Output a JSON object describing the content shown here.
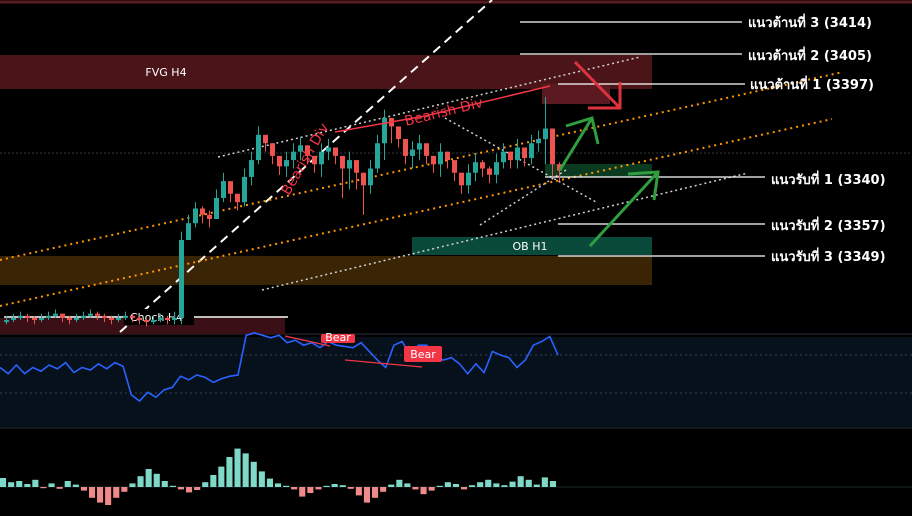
{
  "colors": {
    "background": "#000000",
    "bull": "#26a69a",
    "bear": "#ef5350",
    "fvg_zone": "#4a1419",
    "ob_zone": "#0a4a3a",
    "demand_zone": "#3a2406",
    "rsi_line": "#2962ff",
    "rsi_bg": "#06111c",
    "orange_channel": "#ff9800",
    "arrow_green": "#2e9e3f",
    "arrow_red": "#e0323c"
  },
  "zones": [
    {
      "name": "fvg-h4",
      "label": "FVG H4"
    },
    {
      "name": "ob-h1",
      "label": "OB H1"
    },
    {
      "name": "demand-zone",
      "label": ""
    },
    {
      "name": "choch-zone",
      "label": ""
    }
  ],
  "level_labels": [
    {
      "name": "resistance-3",
      "text": "แนวต้านที่ 3 (3414)"
    },
    {
      "name": "resistance-2",
      "text": "แนวต้านที่ 2 (3405)"
    },
    {
      "name": "resistance-1",
      "text": "แนวต้านที่ 1 (3397)"
    },
    {
      "name": "support-1",
      "text": "แนวรับที่ 1 (3340)"
    },
    {
      "name": "support-2",
      "text": "แนวรับที่ 2 (3357)"
    },
    {
      "name": "support-3",
      "text": "แนวรับที่ 3 (3349)"
    }
  ],
  "annotations": {
    "choch": "Choch H4",
    "bearish_div_1": "Bearish Div",
    "bearish_div_2": "Bearish Div",
    "rsi_bear_1": "Bear",
    "rsi_bear_2": "Bear"
  },
  "chart_data": [
    {
      "type": "candlestick",
      "pane": "price",
      "title": "",
      "levels": [
        {
          "label": "แนวต้านที่ 3",
          "value": 3414
        },
        {
          "label": "แนวต้านที่ 2",
          "value": 3405
        },
        {
          "label": "แนวต้านที่ 1",
          "value": 3397
        },
        {
          "label": "แนวรับที่ 1",
          "value": 3340
        },
        {
          "label": "แนวรับที่ 2",
          "value": 3357
        },
        {
          "label": "แนวรับที่ 3",
          "value": 3349
        }
      ],
      "close": [
        3302,
        3303,
        3304,
        3303,
        3302,
        3303,
        3304,
        3305,
        3303,
        3302,
        3303,
        3304,
        3305,
        3304,
        3303,
        3302,
        3303,
        3304,
        3303,
        3302,
        3301,
        3302,
        3303,
        3302,
        3303,
        3340,
        3348,
        3355,
        3352,
        3350,
        3360,
        3368,
        3362,
        3358,
        3370,
        3378,
        3390,
        3386,
        3380,
        3375,
        3378,
        3382,
        3385,
        3380,
        3376,
        3382,
        3384,
        3380,
        3374,
        3378,
        3372,
        3366,
        3374,
        3386,
        3398,
        3394,
        3388,
        3380,
        3383,
        3386,
        3380,
        3376,
        3382,
        3378,
        3372,
        3366,
        3372,
        3377,
        3374,
        3371,
        3377,
        3382,
        3378,
        3384,
        3379,
        3386,
        3388,
        3393,
        3376,
        3373
      ],
      "high": [
        3304,
        3305,
        3306,
        3305,
        3304,
        3305,
        3306,
        3307,
        3305,
        3304,
        3305,
        3306,
        3307,
        3306,
        3305,
        3304,
        3305,
        3306,
        3305,
        3304,
        3303,
        3304,
        3305,
        3304,
        3306,
        3344,
        3352,
        3358,
        3356,
        3354,
        3364,
        3372,
        3366,
        3362,
        3374,
        3382,
        3394,
        3390,
        3384,
        3379,
        3382,
        3386,
        3389,
        3384,
        3380,
        3386,
        3388,
        3384,
        3378,
        3382,
        3376,
        3370,
        3378,
        3390,
        3402,
        3398,
        3392,
        3384,
        3387,
        3390,
        3384,
        3380,
        3386,
        3382,
        3376,
        3370,
        3376,
        3381,
        3378,
        3375,
        3381,
        3386,
        3382,
        3388,
        3383,
        3390,
        3392,
        3408,
        3382,
        3377
      ],
      "low": [
        3300,
        3301,
        3302,
        3301,
        3300,
        3301,
        3302,
        3303,
        3301,
        3300,
        3301,
        3302,
        3303,
        3302,
        3301,
        3300,
        3301,
        3302,
        3301,
        3300,
        3299,
        3300,
        3301,
        3300,
        3300,
        3300,
        3340,
        3346,
        3348,
        3346,
        3350,
        3358,
        3358,
        3354,
        3356,
        3366,
        3376,
        3382,
        3376,
        3371,
        3370,
        3374,
        3378,
        3376,
        3372,
        3370,
        3378,
        3376,
        3360,
        3364,
        3364,
        3352,
        3362,
        3372,
        3378,
        3386,
        3384,
        3376,
        3374,
        3378,
        3376,
        3372,
        3370,
        3374,
        3368,
        3362,
        3362,
        3368,
        3370,
        3367,
        3367,
        3374,
        3374,
        3374,
        3375,
        3376,
        3382,
        3376,
        3370,
        3368
      ]
    },
    {
      "type": "line",
      "pane": "rsi",
      "series": [
        {
          "values": [
            52,
            47,
            54,
            47,
            52,
            49,
            54,
            51,
            56,
            48,
            52,
            50,
            55,
            51,
            56,
            53,
            30,
            25,
            32,
            28,
            34,
            36,
            45,
            42,
            46,
            44,
            40,
            43,
            45,
            46,
            78,
            80,
            78,
            76,
            78,
            72,
            74,
            70,
            72,
            68,
            73,
            70,
            69,
            68,
            72,
            65,
            58,
            52,
            70,
            73,
            62,
            70,
            70,
            62,
            58,
            60,
            55,
            47,
            55,
            48,
            65,
            62,
            60,
            52,
            58,
            70,
            73,
            77,
            62
          ]
        }
      ]
    },
    {
      "type": "bar",
      "pane": "momentum",
      "values": [
        1.5,
        0.8,
        1.0,
        0.5,
        1.2,
        -0.2,
        0.6,
        -0.3,
        1.0,
        0.4,
        -0.6,
        -1.8,
        -2.6,
        -3.0,
        -1.8,
        -0.8,
        0.6,
        1.8,
        3.0,
        2.2,
        1.0,
        0.2,
        -0.4,
        -0.9,
        -0.5,
        0.8,
        2.0,
        3.4,
        5.0,
        6.4,
        5.6,
        4.2,
        2.6,
        1.4,
        0.6,
        0.2,
        -0.4,
        -1.6,
        -1.0,
        -0.4,
        0.2,
        0.5,
        0.3,
        -0.3,
        -1.4,
        -2.6,
        -1.8,
        -0.8,
        0.4,
        1.2,
        0.6,
        -0.4,
        -1.2,
        -0.6,
        0.2,
        0.8,
        0.5,
        -0.4,
        0.3,
        0.8,
        1.2,
        0.6,
        0.3,
        0.9,
        1.8,
        1.2,
        0.4,
        1.6,
        1.0
      ]
    }
  ]
}
